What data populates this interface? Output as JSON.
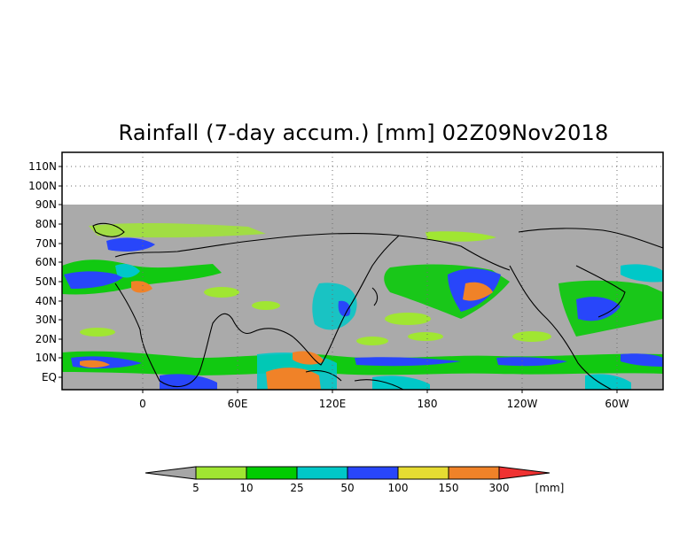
{
  "title": "Rainfall (7-day accum.) [mm] 02Z09Nov2018",
  "map": {
    "lat_ticks": [
      "110N",
      "100N",
      "90N",
      "80N",
      "70N",
      "60N",
      "50N",
      "40N",
      "30N",
      "20N",
      "10N",
      "EQ"
    ],
    "lon_ticks": [
      "0",
      "60E",
      "120E",
      "180",
      "120W",
      "60W"
    ],
    "lat_range_deg": [
      -5,
      115
    ],
    "lon_range_deg_east": [
      -50,
      330
    ],
    "no_data_color": "#aaaaaa",
    "gridlines": "dotted"
  },
  "colorbar": {
    "unit": "[mm]",
    "thresholds": [
      "5",
      "10",
      "25",
      "50",
      "100",
      "150",
      "300"
    ],
    "colors": [
      "#a6a6a6",
      "#a0e632",
      "#00cc00",
      "#00c8c8",
      "#2846fa",
      "#e6dc32",
      "#f08228",
      "#f03232"
    ]
  }
}
